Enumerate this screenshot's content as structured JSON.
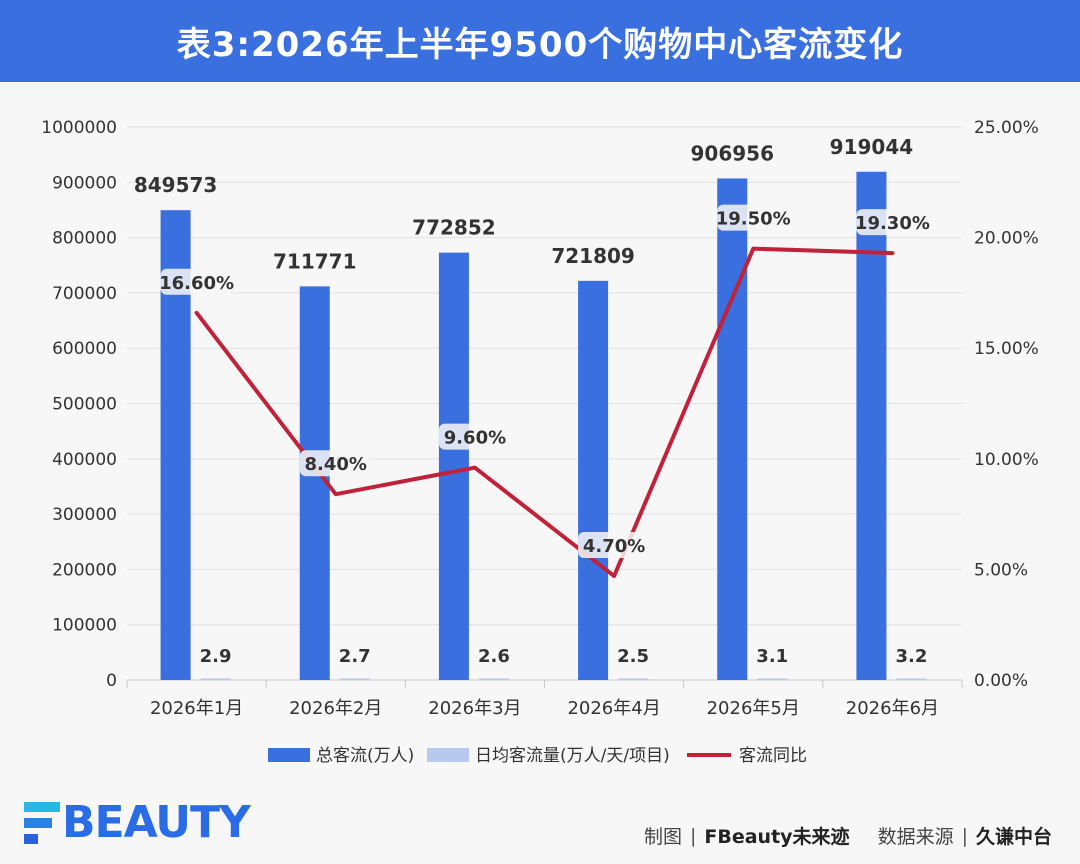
{
  "header": {
    "title": "表3:2026年上半年9500个购物中心客流变化"
  },
  "chart_data": {
    "type": "bar",
    "categories": [
      "2026年1月",
      "2026年2月",
      "2026年3月",
      "2026年4月",
      "2026年5月",
      "2026年6月"
    ],
    "series": [
      {
        "name": "总客流(万人)",
        "type": "bar",
        "axis": "left",
        "color": "#3a6fe0",
        "values": [
          849573,
          711771,
          772852,
          721809,
          906956,
          919044
        ],
        "labels": [
          "849573",
          "711771",
          "772852",
          "721809",
          "906956",
          "919044"
        ]
      },
      {
        "name": "日均客流量(万人/天/项目)",
        "type": "bar",
        "axis": "left",
        "color": "#b7c9ee",
        "values": [
          2.9,
          2.7,
          2.6,
          2.5,
          3.1,
          3.2
        ],
        "labels": [
          "2.9",
          "2.7",
          "2.6",
          "2.5",
          "3.1",
          "3.2"
        ]
      },
      {
        "name": "客流同比",
        "type": "line",
        "axis": "right",
        "color": "#c0223a",
        "values": [
          16.6,
          8.4,
          9.6,
          4.7,
          19.5,
          19.3
        ],
        "labels": [
          "16.60%",
          "8.40%",
          "9.60%",
          "4.70%",
          "19.50%",
          "19.30%"
        ]
      }
    ],
    "y_left": {
      "min": 0,
      "max": 1000000,
      "ticks": [
        "0",
        "100000",
        "200000",
        "300000",
        "400000",
        "500000",
        "600000",
        "700000",
        "800000",
        "900000",
        "1000000"
      ]
    },
    "y_right": {
      "min": 0,
      "max": 25,
      "ticks": [
        "0.00%",
        "5.00%",
        "10.00%",
        "15.00%",
        "20.00%",
        "25.00%"
      ]
    },
    "grid": true,
    "legend_position": "bottom"
  },
  "footer": {
    "logo_text": "BEAUTY",
    "credit_label_1": "制图",
    "credit_value_1": "FBeauty未来迹",
    "credit_label_2": "数据来源",
    "credit_value_2": "久谦中台",
    "separator": "|"
  }
}
